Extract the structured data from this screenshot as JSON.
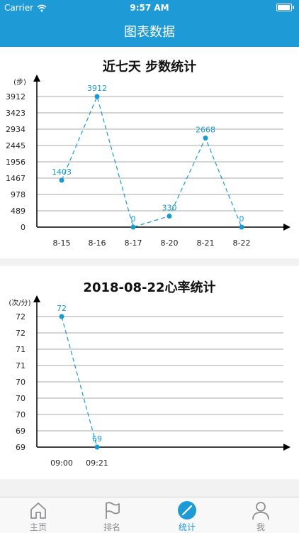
{
  "status": {
    "carrier": "Carrier",
    "time": "9:57 AM",
    "battery_level": 0.95
  },
  "nav": {
    "title": "图表数据"
  },
  "colors": {
    "accent": "#1e9bd6",
    "series": "#1b9ad2",
    "grid": "#a8a8a8"
  },
  "chart_data": [
    {
      "type": "line",
      "title": "近七天 步数统计",
      "ylabel": "(步)",
      "categories": [
        "8-15",
        "8-16",
        "8-17",
        "8-20",
        "8-21",
        "8-22"
      ],
      "yticks": [
        "0",
        "489",
        "978",
        "1467",
        "1956",
        "2445",
        "2934",
        "3423",
        "3912"
      ],
      "ylim": [
        0,
        3912
      ],
      "series": [
        {
          "values": [
            1403,
            3912,
            0,
            330,
            2668,
            0
          ],
          "labels": [
            "1403",
            "3912",
            "0",
            "330",
            "2668",
            "0"
          ]
        }
      ],
      "grid": true,
      "line_style": "dashed"
    },
    {
      "type": "line",
      "title": "2018-08-22心率统计",
      "ylabel": "(次/分)",
      "categories": [
        "09:00",
        "09:21"
      ],
      "yticks": [
        "69",
        "69",
        "70",
        "70",
        "70",
        "71",
        "71",
        "72",
        "72"
      ],
      "ylim": [
        69,
        72
      ],
      "series": [
        {
          "values": [
            72,
            69
          ],
          "labels": [
            "72",
            "69"
          ]
        }
      ],
      "grid": true,
      "line_style": "dashed"
    }
  ],
  "tabbar": {
    "items": [
      {
        "label": "主页",
        "icon": "home-icon",
        "active": false
      },
      {
        "label": "排名",
        "icon": "flag-icon",
        "active": false
      },
      {
        "label": "统计",
        "icon": "compass-icon",
        "active": true
      },
      {
        "label": "我",
        "icon": "person-icon",
        "active": false
      }
    ]
  }
}
